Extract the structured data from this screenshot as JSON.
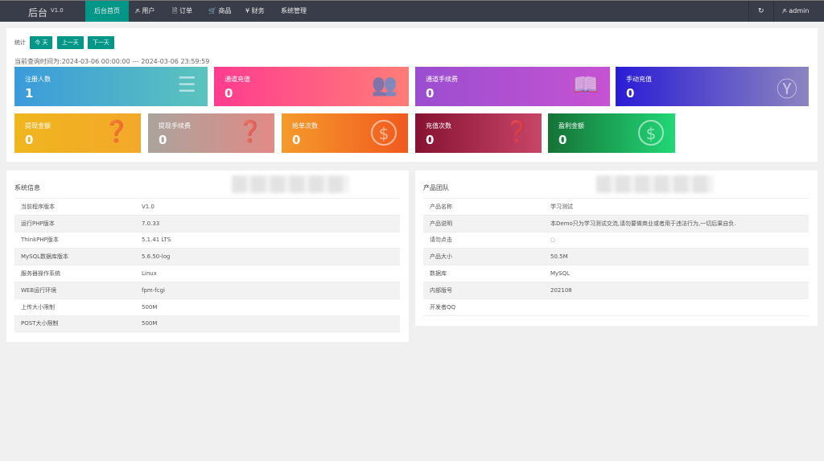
{
  "nav": {
    "logo": "后台",
    "version": "V1.0",
    "items": [
      {
        "label": "后台首页",
        "icon": ""
      },
      {
        "label": "用户",
        "icon": "ዶ"
      },
      {
        "label": "订单",
        "icon": "🗎"
      },
      {
        "label": "商品",
        "icon": "🛒"
      },
      {
        "label": "财务",
        "icon": "¥"
      },
      {
        "label": "系统管理",
        "icon": ""
      }
    ],
    "refresh_icon": "refresh-icon",
    "user": "admin"
  },
  "stats": {
    "label": "统计",
    "today": "今 天",
    "prev": "上一天",
    "next": "下一天",
    "range": "当前查询时间为:2024-03-06 00:00:00 --- 2024-03-06 23:59:59",
    "cards": [
      {
        "label": "注册人数",
        "value": "1",
        "icon": "layers-icon",
        "colors": [
          "#3b9bdb",
          "#5bc3bd"
        ]
      },
      {
        "label": "通道充值",
        "value": "0",
        "icon": "users-icon",
        "colors": [
          "#ff3c8f",
          "#ff7d78"
        ]
      },
      {
        "label": "通道手续费",
        "value": "0",
        "icon": "book-icon",
        "colors": [
          "#9a4ecf",
          "#c653d3"
        ]
      },
      {
        "label": "手动充值",
        "value": "0",
        "icon": "yen-icon",
        "colors": [
          "#2a1cd6",
          "#8c85bf"
        ]
      },
      {
        "label": "提现金额",
        "value": "0",
        "icon": "question-edit-icon",
        "colors": [
          "#f0b61e",
          "#f3a82a"
        ]
      },
      {
        "label": "提现手续费",
        "value": "0",
        "icon": "question-edit-icon",
        "colors": [
          "#aaa49c",
          "#e28a86"
        ]
      },
      {
        "label": "抢单次数",
        "value": "0",
        "icon": "dollar-icon",
        "colors": [
          "#f59a2c",
          "#f05a1e"
        ]
      },
      {
        "label": "充值次数",
        "value": "0",
        "icon": "question-edit-icon",
        "colors": [
          "#861232",
          "#c84668"
        ]
      },
      {
        "label": "盈利金额",
        "value": "0",
        "icon": "dollar-icon",
        "colors": [
          "#157236",
          "#22d877"
        ]
      }
    ]
  },
  "sysinfo": {
    "title": "系统信息",
    "rows": [
      [
        "当前程序版本",
        "V1.0"
      ],
      [
        "运行PHP版本",
        "7.0.33"
      ],
      [
        "ThinkPHP版本",
        "5.1.41 LTS"
      ],
      [
        "MySQL数据库版本",
        "5.6.50-log"
      ],
      [
        "服务器操作系统",
        "Linux"
      ],
      [
        "WEB运行环境",
        "fpm-fcgi"
      ],
      [
        "上传大小限制",
        "500M"
      ],
      [
        "POST大小限制",
        "500M"
      ]
    ]
  },
  "team": {
    "title": "产品团队",
    "rows": [
      [
        "产品名称",
        "学习测试"
      ],
      [
        "产品说明",
        "本Demo只为学习测试交流,请勿要做商业或者用于违法行为,一切后果自负."
      ],
      [
        "请勿点击",
        "◌"
      ],
      [
        "产品大小",
        "50.5M"
      ],
      [
        "数据库",
        "MySQL"
      ],
      [
        "内部版号",
        "202108"
      ],
      [
        "开发者QQ",
        ""
      ]
    ]
  }
}
